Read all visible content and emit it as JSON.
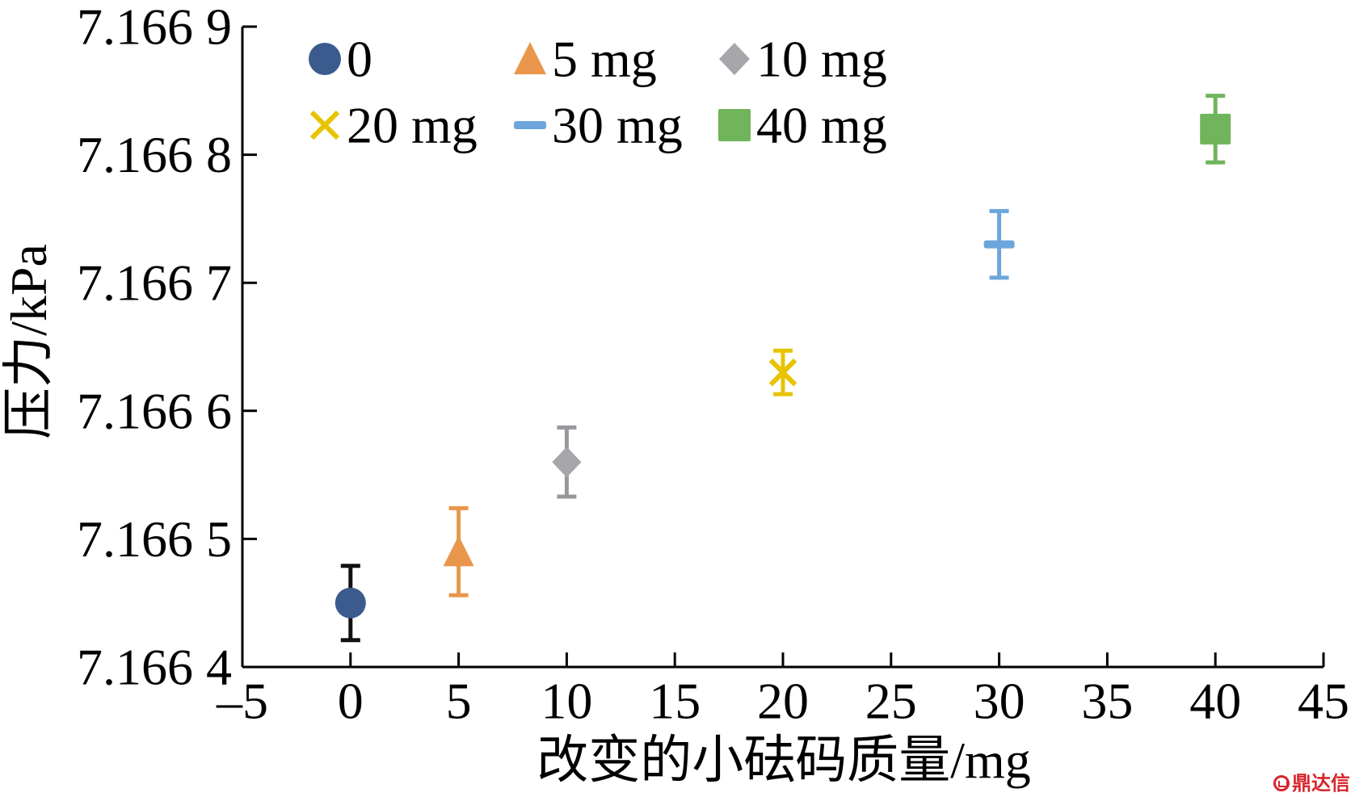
{
  "chart_data": {
    "type": "scatter",
    "xlabel": "改变的小砝码质量/mg",
    "ylabel": "压力/kPa",
    "xlim": [
      -5,
      45
    ],
    "ylim": [
      7.1664,
      7.1669
    ],
    "x_ticks": [
      -5,
      0,
      5,
      10,
      15,
      20,
      25,
      30,
      35,
      40,
      45
    ],
    "x_tick_labels": [
      "–5",
      "0",
      "5",
      "10",
      "15",
      "20",
      "25",
      "30",
      "35",
      "40",
      "45"
    ],
    "y_ticks": [
      7.1664,
      7.1665,
      7.1666,
      7.1667,
      7.1668,
      7.1669
    ],
    "y_tick_labels": [
      "7.166 4",
      "7.166 5",
      "7.166 6",
      "7.166 7",
      "7.166 8",
      "7.166 9"
    ],
    "grid": false,
    "legend_position": "top-left",
    "error_bars": true,
    "series": [
      {
        "name": "0",
        "marker": "circle",
        "color": "#3b5b8e",
        "error_color": "#111111",
        "x": [
          0
        ],
        "y": [
          7.16645
        ],
        "yerr": [
          2.9e-05
        ]
      },
      {
        "name": "5 mg",
        "marker": "triangle",
        "color": "#e9964c",
        "error_color": "#e9964c",
        "x": [
          5
        ],
        "y": [
          7.16649
        ],
        "yerr": [
          3.4e-05
        ]
      },
      {
        "name": "10 mg",
        "marker": "diamond",
        "color": "#a7a7ab",
        "error_color": "#98989c",
        "x": [
          10
        ],
        "y": [
          7.16656
        ],
        "yerr": [
          2.7e-05
        ]
      },
      {
        "name": "20 mg",
        "marker": "x",
        "color": "#e8c300",
        "error_color": "#e8c300",
        "x": [
          20
        ],
        "y": [
          7.16663
        ],
        "yerr": [
          1.7e-05
        ]
      },
      {
        "name": "30 mg",
        "marker": "dash",
        "color": "#6ca6dc",
        "error_color": "#6ca6dc",
        "x": [
          30
        ],
        "y": [
          7.16673
        ],
        "yerr": [
          2.6e-05
        ]
      },
      {
        "name": "40 mg",
        "marker": "square",
        "color": "#70b45b",
        "error_color": "#70b45b",
        "x": [
          40
        ],
        "y": [
          7.16682
        ],
        "yerr": [
          2.6e-05
        ]
      }
    ]
  },
  "watermark": {
    "text": "鼎达信",
    "color": "#d6262b",
    "icon": "logo-icon"
  }
}
